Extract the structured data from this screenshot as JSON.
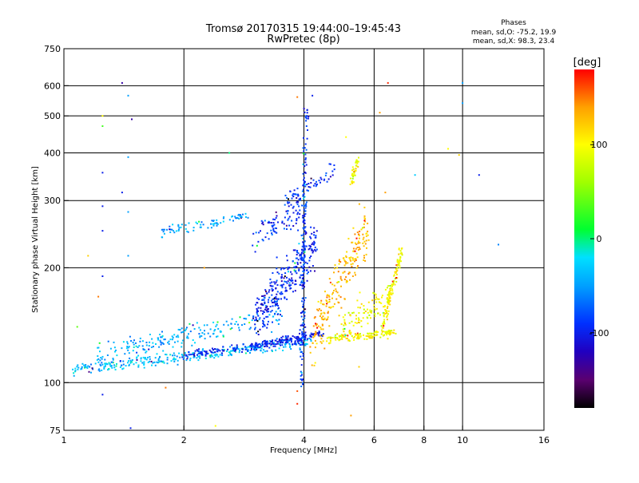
{
  "header": {
    "title": "Tromsø 20170315 19:44:00–19:45:43",
    "subtitle": "RwPretec (8p)"
  },
  "phases": {
    "heading": "Phases",
    "line_o": "mean, sd,O: -75.2, 19.9",
    "line_x": "mean, sd,X:  98.3, 23.4"
  },
  "colorbar": {
    "label": "[deg]",
    "ticks": [
      {
        "value": 100,
        "label": "100"
      },
      {
        "value": 0,
        "label": "0"
      },
      {
        "value": -100,
        "label": "-100"
      }
    ],
    "stops": [
      {
        "value": -180,
        "color": "#000000"
      },
      {
        "value": -150,
        "color": "#5a0070"
      },
      {
        "value": -120,
        "color": "#2000c0"
      },
      {
        "value": -90,
        "color": "#0030ff"
      },
      {
        "value": -50,
        "color": "#00a0ff"
      },
      {
        "value": -20,
        "color": "#00e0ff"
      },
      {
        "value": 10,
        "color": "#00ff30"
      },
      {
        "value": 60,
        "color": "#a0ff00"
      },
      {
        "value": 100,
        "color": "#ffff00"
      },
      {
        "value": 140,
        "color": "#ffa000"
      },
      {
        "value": 180,
        "color": "#ff0000"
      }
    ]
  },
  "chart_data": {
    "type": "scatter",
    "title": "Tromsø 20170315 19:44:00–19:45:43",
    "subtitle": "RwPretec (8p)",
    "xlabel": "Frequency [MHz]",
    "ylabel": "Stationary phase Virtual Height [km]",
    "xscale": "log",
    "yscale": "log",
    "xlim": [
      1,
      16
    ],
    "ylim": [
      75,
      750
    ],
    "grid": true,
    "x_ticks": [
      {
        "value": 1,
        "label": "1"
      },
      {
        "value": 2,
        "label": "2"
      },
      {
        "value": 4,
        "label": "4"
      },
      {
        "value": 6,
        "label": "6"
      },
      {
        "value": 8,
        "label": "8"
      },
      {
        "value": 10,
        "label": "10"
      },
      {
        "value": 16,
        "label": "16"
      }
    ],
    "x_grid": [
      1,
      2,
      4,
      6,
      8,
      10,
      16
    ],
    "y_ticks": [
      {
        "value": 75,
        "label": "75"
      },
      {
        "value": 100,
        "label": "100"
      },
      {
        "value": 200,
        "label": "200"
      },
      {
        "value": 300,
        "label": "300"
      },
      {
        "value": 400,
        "label": "400"
      },
      {
        "value": 500,
        "label": "500"
      },
      {
        "value": 600,
        "label": "600"
      },
      {
        "value": 750,
        "label": "750"
      }
    ],
    "y_grid": [
      100,
      200,
      300,
      400,
      500,
      600
    ],
    "color_variable": "phase [deg]",
    "traces": [
      {
        "x_start": 1.05,
        "x_end": 4.2,
        "y_start": 108,
        "y_end": 128,
        "phase": -35,
        "jitter": 0.03,
        "count": 300
      },
      {
        "x_start": 1.2,
        "x_end": 3.5,
        "y_start": 118,
        "y_end": 150,
        "phase": -45,
        "jitter": 0.06,
        "count": 200
      },
      {
        "x_start": 2.0,
        "x_end": 4.0,
        "y_start": 118,
        "y_end": 130,
        "phase": -95,
        "jitter": 0.02,
        "count": 160
      },
      {
        "x_start": 3.0,
        "x_end": 4.5,
        "y_start": 125,
        "y_end": 135,
        "phase": -100,
        "jitter": 0.02,
        "count": 100
      },
      {
        "x_start": 1.75,
        "x_end": 2.9,
        "y_start": 248,
        "y_end": 272,
        "phase": -45,
        "jitter": 0.025,
        "count": 80
      },
      {
        "x_start": 3.0,
        "x_end": 4.0,
        "y_start": 240,
        "y_end": 290,
        "phase": -95,
        "jitter": 0.08,
        "count": 90
      },
      {
        "x_start": 3.0,
        "x_end": 4.3,
        "y_start": 145,
        "y_end": 235,
        "phase": -95,
        "jitter": 0.12,
        "count": 300
      },
      {
        "x_start": 3.6,
        "x_end": 4.8,
        "y_start": 300,
        "y_end": 360,
        "phase": -90,
        "jitter": 0.04,
        "count": 60
      },
      {
        "x_start": 3.95,
        "x_end": 4.05,
        "y_start": 100,
        "y_end": 520,
        "phase": -90,
        "jitter": 0.02,
        "count": 180
      },
      {
        "x_start": 4.2,
        "x_end": 5.8,
        "y_start": 130,
        "y_end": 260,
        "phase": 130,
        "jitter": 0.14,
        "count": 220
      },
      {
        "x_start": 4.6,
        "x_end": 6.8,
        "y_start": 130,
        "y_end": 135,
        "phase": 100,
        "jitter": 0.02,
        "count": 140
      },
      {
        "x_start": 6.3,
        "x_end": 7.05,
        "y_start": 140,
        "y_end": 225,
        "phase": 100,
        "jitter": 0.03,
        "count": 120
      },
      {
        "x_start": 5.0,
        "x_end": 6.6,
        "y_start": 140,
        "y_end": 170,
        "phase": 95,
        "jitter": 0.08,
        "count": 100
      },
      {
        "x_start": 5.25,
        "x_end": 5.45,
        "y_start": 330,
        "y_end": 385,
        "phase": 100,
        "jitter": 0.02,
        "count": 40
      }
    ],
    "sparse_points": [
      {
        "x": 1.25,
        "y": 500,
        "phase": 100
      },
      {
        "x": 1.25,
        "y": 470,
        "phase": 30
      },
      {
        "x": 1.25,
        "y": 355,
        "phase": -100
      },
      {
        "x": 1.25,
        "y": 290,
        "phase": -100
      },
      {
        "x": 1.25,
        "y": 250,
        "phase": -100
      },
      {
        "x": 1.25,
        "y": 190,
        "phase": -100
      },
      {
        "x": 1.25,
        "y": 93,
        "phase": -100
      },
      {
        "x": 1.4,
        "y": 610,
        "phase": -130
      },
      {
        "x": 1.45,
        "y": 565,
        "phase": -50
      },
      {
        "x": 1.48,
        "y": 490,
        "phase": -130
      },
      {
        "x": 1.45,
        "y": 390,
        "phase": -50
      },
      {
        "x": 1.4,
        "y": 315,
        "phase": -100
      },
      {
        "x": 1.45,
        "y": 280,
        "phase": -50
      },
      {
        "x": 1.45,
        "y": 215,
        "phase": -50
      },
      {
        "x": 1.47,
        "y": 76,
        "phase": -100
      },
      {
        "x": 1.15,
        "y": 215,
        "phase": 120
      },
      {
        "x": 1.22,
        "y": 168,
        "phase": 150
      },
      {
        "x": 1.08,
        "y": 140,
        "phase": 40
      },
      {
        "x": 1.8,
        "y": 97,
        "phase": 150
      },
      {
        "x": 2.4,
        "y": 77,
        "phase": 100
      },
      {
        "x": 2.25,
        "y": 200,
        "phase": 140
      },
      {
        "x": 2.6,
        "y": 400,
        "phase": 0
      },
      {
        "x": 3.85,
        "y": 560,
        "phase": 150
      },
      {
        "x": 3.85,
        "y": 95,
        "phase": 160
      },
      {
        "x": 3.85,
        "y": 88,
        "phase": 170
      },
      {
        "x": 4.2,
        "y": 565,
        "phase": -100
      },
      {
        "x": 5.1,
        "y": 440,
        "phase": 100
      },
      {
        "x": 5.25,
        "y": 82,
        "phase": 140
      },
      {
        "x": 5.5,
        "y": 110,
        "phase": 120
      },
      {
        "x": 6.2,
        "y": 510,
        "phase": 140
      },
      {
        "x": 6.5,
        "y": 610,
        "phase": 170
      },
      {
        "x": 6.4,
        "y": 315,
        "phase": 140
      },
      {
        "x": 7.6,
        "y": 350,
        "phase": -30
      },
      {
        "x": 9.2,
        "y": 410,
        "phase": 100
      },
      {
        "x": 10.0,
        "y": 610,
        "phase": -50
      },
      {
        "x": 10.0,
        "y": 540,
        "phase": -50
      },
      {
        "x": 11.0,
        "y": 350,
        "phase": -100
      },
      {
        "x": 12.3,
        "y": 230,
        "phase": -60
      },
      {
        "x": 9.8,
        "y": 395,
        "phase": 120
      }
    ]
  }
}
